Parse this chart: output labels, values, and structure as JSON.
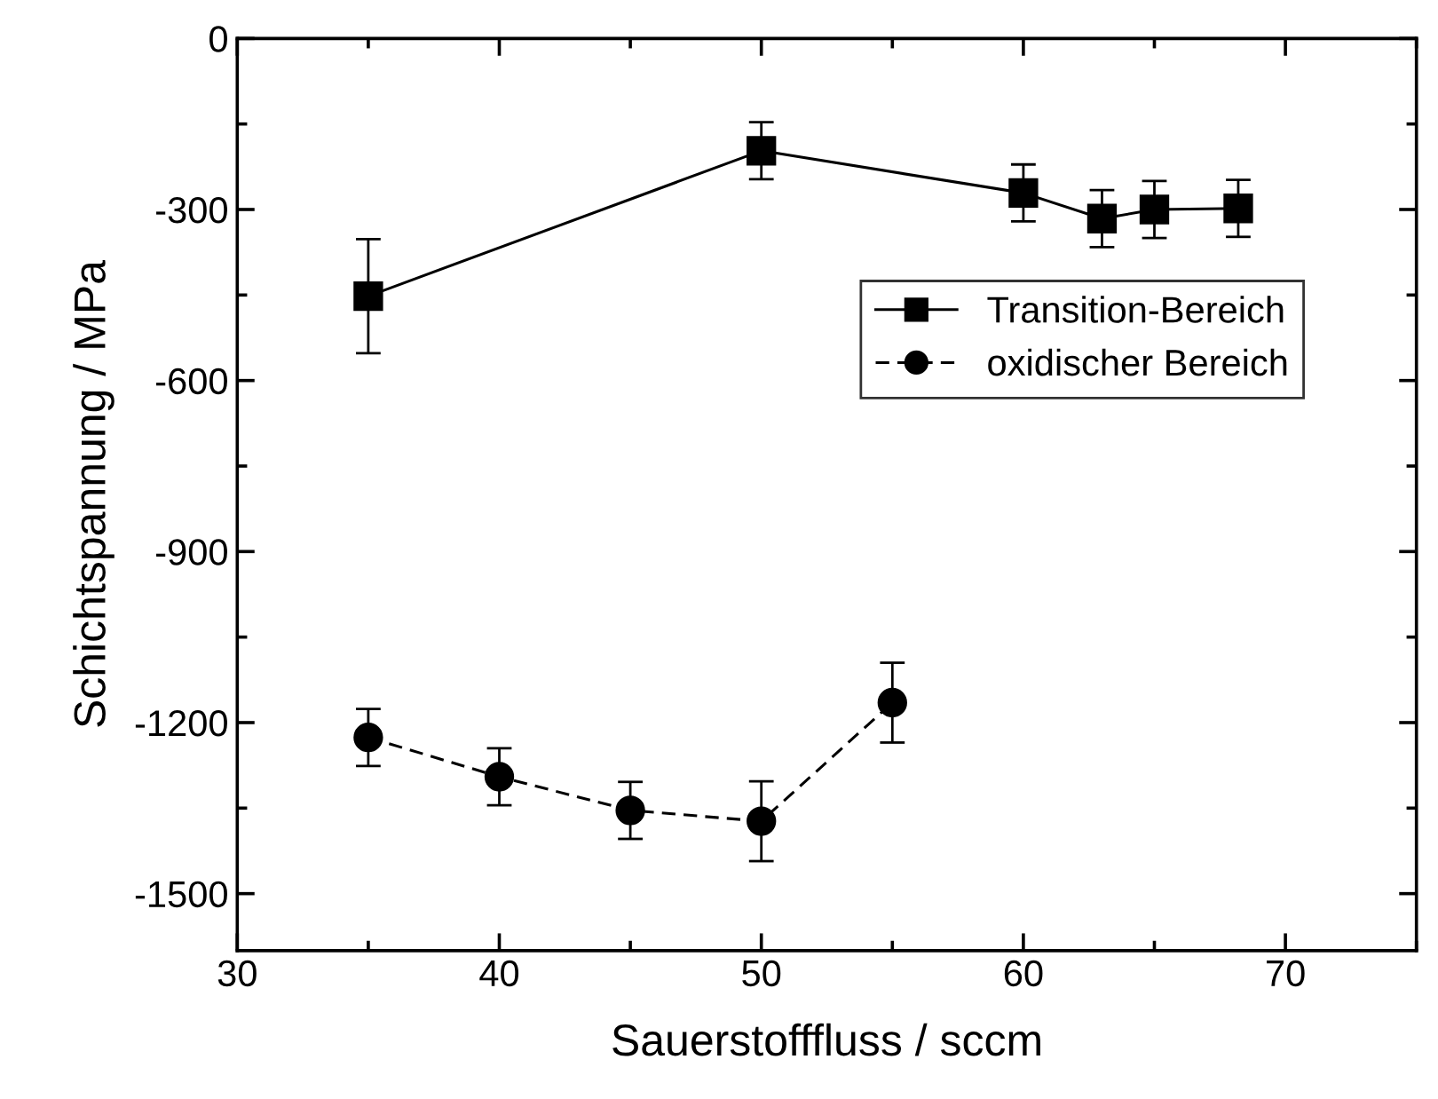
{
  "chart_data": {
    "type": "line",
    "xlabel": "Sauerstofffluss / sccm",
    "ylabel": "Schichtspannung / MPa",
    "xlim": [
      30,
      75
    ],
    "xticks": [
      30,
      40,
      50,
      60,
      70
    ],
    "ylim": [
      -1600,
      0
    ],
    "yticks": [
      -1500,
      -1200,
      -900,
      -600,
      -300,
      0
    ],
    "grid": false,
    "legend": "right",
    "series": [
      {
        "name": "Transition-Bereich",
        "color": "#000000",
        "marker": "square",
        "line_style": "solid",
        "x": [
          35,
          50,
          60,
          63,
          65,
          68.2
        ],
        "values": [
          -452,
          -197,
          -271,
          -316,
          -300,
          -298
        ],
        "errors": [
          100,
          50,
          50,
          50,
          50,
          50
        ]
      },
      {
        "name": "oxidischer Bereich",
        "color": "#000000",
        "marker": "circle",
        "line_style": "dashed",
        "x": [
          35,
          40,
          45,
          50,
          55
        ],
        "values": [
          -1226,
          -1295,
          -1354,
          -1373,
          -1165
        ],
        "errors": [
          50,
          50,
          50,
          70,
          70
        ]
      }
    ]
  }
}
